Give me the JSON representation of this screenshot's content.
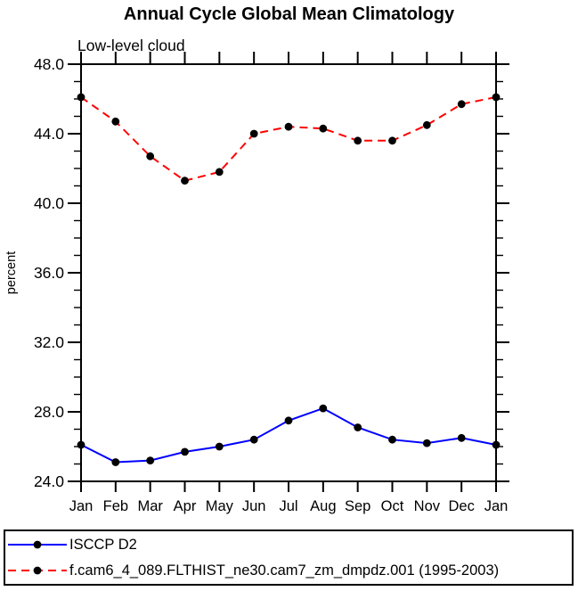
{
  "title": "Annual Cycle Global Mean Climatology",
  "chart_data": {
    "type": "line",
    "title": "Annual Cycle Global Mean Climatology",
    "subtitle": "Low-level cloud",
    "ylabel": "percent",
    "xlabel": "",
    "ylim": [
      24.0,
      48.0
    ],
    "ytick_major": [
      24,
      28,
      32,
      36,
      40,
      44,
      48
    ],
    "ytick_labels": [
      "24.0",
      "28.0",
      "32.0",
      "36.0",
      "40.0",
      "44.0",
      "48.0"
    ],
    "ytick_minor_step": 1,
    "grid": false,
    "legend_position": "bottom-box",
    "x_tick_labels": [
      "Jan",
      "Feb",
      "Mar",
      "Apr",
      "May",
      "Jun",
      "Jul",
      "Aug",
      "Sep",
      "Oct",
      "Nov",
      "Dec",
      "Jan"
    ],
    "axis_color": "#000000",
    "marker_color": "#000000",
    "series": [
      {
        "name": "ISCCP D2",
        "color": "#0000ff",
        "style": "solid",
        "marker": "black-dot",
        "values": [
          26.1,
          25.1,
          25.2,
          25.7,
          26.0,
          26.4,
          27.5,
          28.2,
          27.1,
          26.4,
          26.2,
          26.5,
          26.1
        ]
      },
      {
        "name": "f.cam6_4_089.FLTHIST_ne30.cam7_zm_dmpdz.001 (1995-2003)",
        "color": "#ff0000",
        "style": "dashed",
        "marker": "black-dot",
        "values": [
          46.1,
          44.7,
          42.7,
          41.3,
          41.8,
          44.0,
          44.4,
          44.3,
          43.6,
          43.6,
          44.5,
          45.7,
          46.1
        ]
      }
    ]
  }
}
